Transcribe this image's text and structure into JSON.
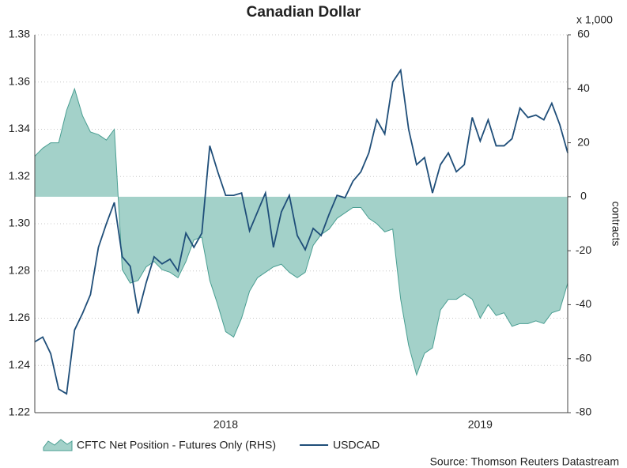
{
  "chart_data": {
    "type": "line-area",
    "title": "Canadian Dollar",
    "y2label": "contracts",
    "y2unit": "x 1,000",
    "source": "Source: Thomson Reuters Datastream",
    "categories": [
      null,
      null,
      null,
      null,
      null,
      null,
      null,
      null,
      null,
      null,
      null,
      null,
      null,
      null,
      null,
      null,
      null,
      null,
      null,
      null,
      null,
      null,
      null,
      null,
      "2018",
      null,
      null,
      null,
      null,
      null,
      null,
      null,
      null,
      null,
      null,
      null,
      null,
      null,
      null,
      null,
      null,
      null,
      null,
      null,
      null,
      null,
      null,
      null,
      null,
      null,
      null,
      null,
      null,
      null,
      null,
      null,
      "2019",
      null,
      null,
      null,
      null,
      null,
      null,
      null,
      null,
      null,
      null,
      null
    ],
    "series": [
      {
        "name": "CFTC Net Position - Futures Only (RHS)",
        "type": "area",
        "axis": "y2",
        "color": "#a3d1c9",
        "line_color": "#4a9e92",
        "values": [
          15,
          18,
          20,
          20,
          32,
          40,
          30,
          24,
          23,
          21,
          25,
          -27,
          -32,
          -31,
          -26,
          -24,
          -27,
          -28,
          -30,
          -24,
          -16,
          -15,
          -31,
          -40,
          -50,
          -52,
          -45,
          -35,
          -30,
          -28,
          -26,
          -25,
          -28,
          -30,
          -28,
          -18,
          -14,
          -12,
          -8,
          -6,
          -4,
          -4,
          -8,
          -10,
          -13,
          -12,
          -38,
          -55,
          -66,
          -58,
          -56,
          -42,
          -38,
          -38,
          -36,
          -38,
          -45,
          -40,
          -44,
          -43,
          -48,
          -47,
          -47,
          -46,
          -47,
          -43,
          -42,
          -32
        ]
      },
      {
        "name": "USDCAD",
        "type": "line",
        "axis": "y",
        "color": "#1f4e79",
        "values": [
          1.25,
          1.252,
          1.245,
          1.23,
          1.228,
          1.255,
          1.262,
          1.27,
          1.29,
          1.3,
          1.309,
          1.286,
          1.282,
          1.262,
          1.275,
          1.286,
          1.283,
          1.285,
          1.28,
          1.296,
          1.29,
          1.296,
          1.333,
          1.322,
          1.312,
          1.312,
          1.313,
          1.297,
          1.305,
          1.313,
          1.29,
          1.305,
          1.312,
          1.295,
          1.289,
          1.298,
          1.295,
          1.304,
          1.312,
          1.311,
          1.318,
          1.322,
          1.33,
          1.344,
          1.338,
          1.36,
          1.365,
          1.34,
          1.325,
          1.328,
          1.313,
          1.325,
          1.33,
          1.322,
          1.325,
          1.345,
          1.335,
          1.344,
          1.333,
          1.333,
          1.336,
          1.349,
          1.345,
          1.346,
          1.344,
          1.351,
          1.342,
          1.33
        ]
      }
    ],
    "ylim": [
      1.22,
      1.38
    ],
    "yticks": [
      1.22,
      1.24,
      1.26,
      1.28,
      {
        "value": 1.3,
        "label": "1.30"
      },
      1.32,
      1.34,
      1.36,
      1.38
    ],
    "y2lim": [
      -80,
      60
    ],
    "y2ticks": [
      -80,
      -60,
      -40,
      -20,
      0,
      20,
      40,
      60
    ],
    "grid": true
  }
}
